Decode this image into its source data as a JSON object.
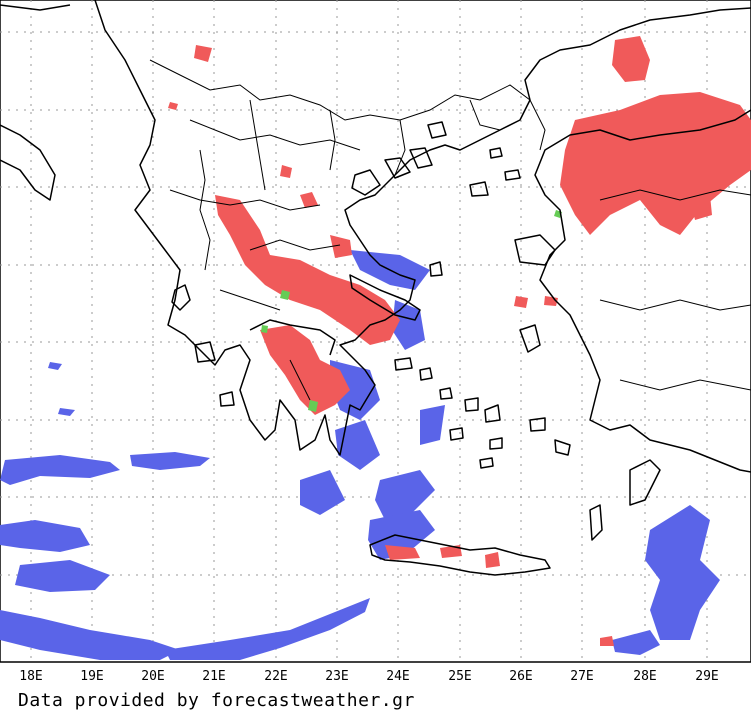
{
  "map": {
    "longitude_labels": [
      "18E",
      "19E",
      "20E",
      "21E",
      "22E",
      "23E",
      "24E",
      "25E",
      "26E",
      "27E",
      "28E",
      "29E"
    ],
    "colors": {
      "rain": "#5a64e8",
      "snow_or_heavy": "#f05a5a",
      "mixed": "#66cc55",
      "grid": "#9a9a9a"
    }
  },
  "footer": {
    "credit": "Data provided by forecastweather.gr"
  }
}
